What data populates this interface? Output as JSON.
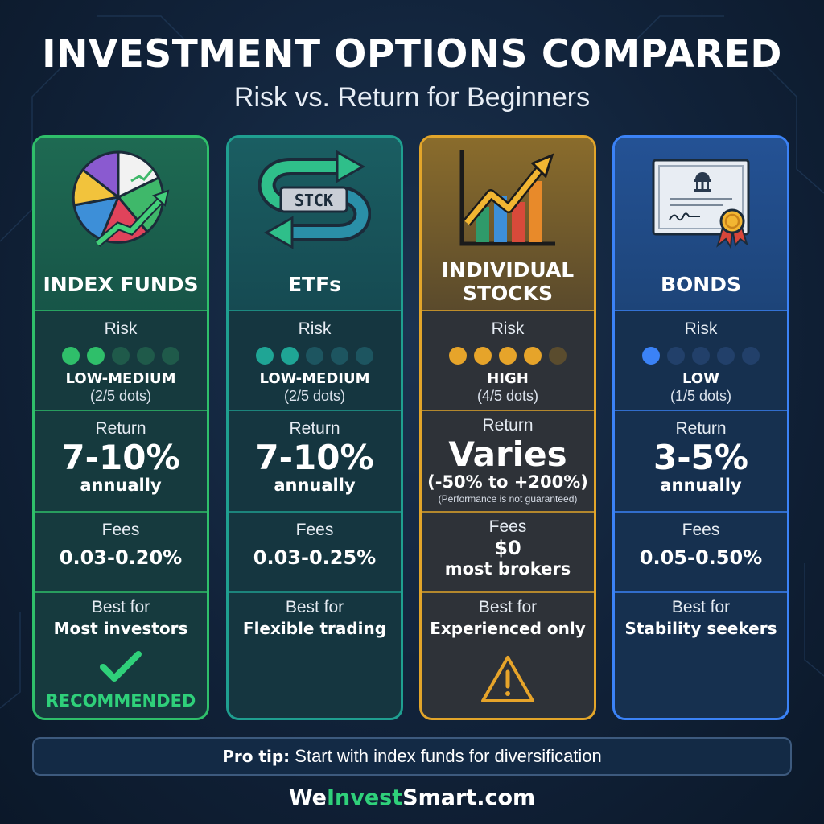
{
  "header": {
    "title": "INVESTMENT OPTIONS COMPARED",
    "subtitle": "Risk vs. Return for Beginners"
  },
  "colors": {
    "green": "#2fbf6a",
    "teal": "#1f9f90",
    "gold": "#e2a52a",
    "blue": "#3b82f6",
    "background": "#112239"
  },
  "cards": [
    {
      "name": "INDEX FUNDS",
      "icon": "pie-chart-growth-icon",
      "risk_label": "Risk",
      "risk_dots_filled": 2,
      "risk_dots_total": 5,
      "risk_level": "LOW-MEDIUM",
      "risk_note": "(2/5 dots)",
      "return_label": "Return",
      "return_value": "7-10%",
      "return_sub": "annually",
      "fees_label": "Fees",
      "fees_value": "0.03-0.20%",
      "best_label": "Best for",
      "best_value": "Most investors",
      "badge_icon": "checkmark-icon",
      "badge_text": "RECOMMENDED"
    },
    {
      "name": "ETFs",
      "icon": "stock-exchange-arrows-icon",
      "icon_text": "STCK",
      "risk_label": "Risk",
      "risk_dots_filled": 2,
      "risk_dots_total": 5,
      "risk_level": "LOW-MEDIUM",
      "risk_note": "(2/5 dots)",
      "return_label": "Return",
      "return_value": "7-10%",
      "return_sub": "annually",
      "fees_label": "Fees",
      "fees_value": "0.03-0.25%",
      "best_label": "Best for",
      "best_value": "Flexible trading"
    },
    {
      "name_line1": "INDIVIDUAL",
      "name_line2": "STOCKS",
      "icon": "rising-bar-chart-icon",
      "risk_label": "Risk",
      "risk_dots_filled": 4,
      "risk_dots_total": 5,
      "risk_level": "HIGH",
      "risk_note": "(4/5 dots)",
      "return_label": "Return",
      "return_value": "Varies",
      "return_range": "(-50% to +200%)",
      "return_disclaimer": "(Performance is not guaranteed)",
      "fees_label": "Fees",
      "fees_value": "$0",
      "fees_sub": "most brokers",
      "best_label": "Best for",
      "best_value": "Experienced only",
      "badge_icon": "warning-icon"
    },
    {
      "name": "BONDS",
      "icon": "bond-certificate-icon",
      "risk_label": "Risk",
      "risk_dots_filled": 1,
      "risk_dots_total": 5,
      "risk_level": "LOW",
      "risk_note": "(1/5 dots)",
      "return_label": "Return",
      "return_value": "3-5%",
      "return_sub": "annually",
      "fees_label": "Fees",
      "fees_value": "0.05-0.50%",
      "best_label": "Best for",
      "best_value": "Stability seekers"
    }
  ],
  "tip": {
    "bold": "Pro tip:",
    "text": "Start with index funds for diversification"
  },
  "brand": {
    "part1": "We",
    "part2": "Invest",
    "part3": "Smart",
    "part4": ".com"
  }
}
